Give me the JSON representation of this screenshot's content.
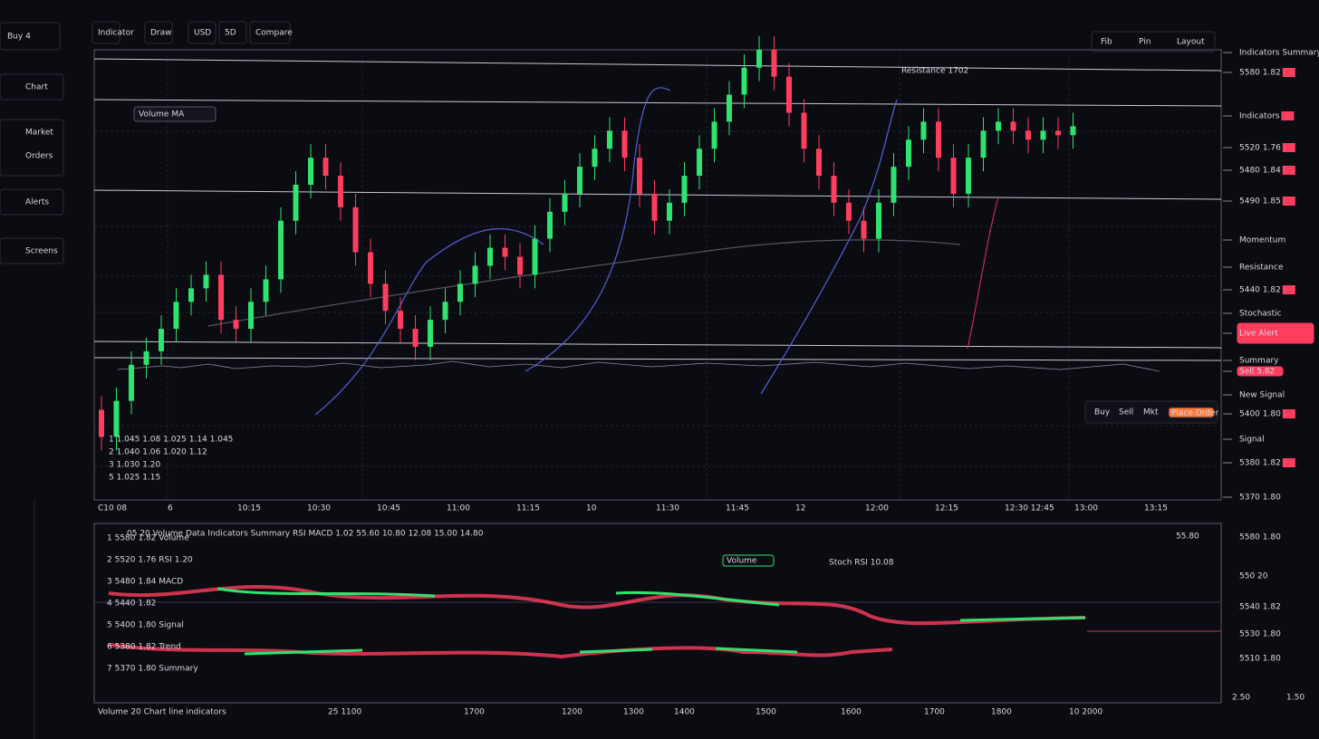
{
  "sidebar": {
    "top": "Buy 4",
    "items": [
      "Chart",
      "Market",
      "Orders",
      "Alerts",
      "Screens"
    ]
  },
  "toolbar": [
    "Indicator",
    "Draw",
    "USD",
    "5D",
    "Compare"
  ],
  "top_right": [
    "Fib",
    "Pin",
    "Layout"
  ],
  "chart_data": {
    "type": "candlestick",
    "annotation": "Resistance 1702",
    "legend_box": "Volume MA",
    "up_color": "#2fe36f",
    "down_color": "#ff3d5e",
    "ylim": [
      0,
      105
    ],
    "open": [
      20,
      14,
      22,
      30,
      33,
      38,
      44,
      47,
      50,
      40,
      38,
      44,
      49,
      62,
      70,
      76,
      72,
      65,
      55,
      48,
      42,
      38,
      34,
      40,
      44,
      48,
      52,
      56,
      54,
      50,
      58,
      64,
      68,
      74,
      78,
      82,
      76,
      68,
      62,
      66,
      72,
      78,
      84,
      90,
      96,
      100,
      94,
      86,
      78,
      72,
      66,
      62,
      58,
      66,
      74,
      80,
      84,
      76,
      68,
      76,
      82,
      84,
      82,
      80,
      82,
      81
    ],
    "high": [
      23,
      25,
      33,
      36,
      41,
      47,
      50,
      53,
      53,
      43,
      47,
      52,
      65,
      73,
      79,
      79,
      75,
      68,
      58,
      51,
      45,
      41,
      43,
      47,
      51,
      55,
      59,
      59,
      57,
      61,
      67,
      71,
      77,
      81,
      85,
      85,
      79,
      71,
      69,
      75,
      81,
      87,
      93,
      99,
      103,
      103,
      97,
      89,
      81,
      75,
      69,
      65,
      69,
      77,
      83,
      87,
      87,
      79,
      79,
      85,
      87,
      87,
      85,
      85,
      85,
      86
    ],
    "low": [
      11,
      11,
      19,
      27,
      30,
      35,
      41,
      44,
      37,
      35,
      35,
      41,
      46,
      59,
      67,
      69,
      62,
      52,
      45,
      39,
      35,
      31,
      31,
      37,
      41,
      45,
      49,
      51,
      47,
      47,
      55,
      61,
      65,
      71,
      75,
      73,
      65,
      59,
      59,
      63,
      69,
      75,
      81,
      87,
      93,
      91,
      83,
      75,
      69,
      63,
      59,
      55,
      55,
      63,
      71,
      77,
      73,
      65,
      65,
      73,
      79,
      79,
      77,
      77,
      78,
      78
    ],
    "close": [
      14,
      22,
      30,
      33,
      38,
      44,
      47,
      50,
      40,
      38,
      44,
      49,
      62,
      70,
      76,
      72,
      65,
      55,
      48,
      42,
      38,
      34,
      40,
      44,
      48,
      52,
      56,
      54,
      50,
      58,
      64,
      68,
      74,
      78,
      82,
      76,
      68,
      62,
      66,
      72,
      78,
      84,
      90,
      96,
      100,
      94,
      86,
      78,
      72,
      66,
      62,
      58,
      66,
      74,
      80,
      84,
      76,
      68,
      76,
      82,
      84,
      82,
      80,
      82,
      81,
      83
    ]
  },
  "legend_rows": [
    "1 1.045 1.08 1.025 1.14 1.045",
    "2 1.040 1.06 1.020 1.12",
    "3 1.030 1.20",
    "5 1.025 1.15"
  ],
  "price_labels": [
    {
      "text": "Indicators Summary"
    },
    {
      "text": "5580 1.82",
      "style": "badge"
    },
    {
      "text": "Indicators",
      "style": "badge"
    },
    {
      "text": "5520 1.76",
      "style": "badge"
    },
    {
      "text": "5480 1.84",
      "style": "badge"
    },
    {
      "text": "5490 1.85",
      "style": "badge"
    },
    {
      "text": "Momentum"
    },
    {
      "text": "Resistance"
    },
    {
      "text": "5440 1.82",
      "style": "badge"
    },
    {
      "text": "Stochastic"
    },
    {
      "text": "Live Alert",
      "style": "box"
    },
    {
      "text": "Summary"
    },
    {
      "text": "Sell 5.82",
      "style": "box"
    },
    {
      "text": "New Signal"
    },
    {
      "text": "5400 1.80",
      "style": "badge"
    },
    {
      "text": "Signal"
    },
    {
      "text": "5380 1.82",
      "style": "badge"
    },
    {
      "text": "5370 1.80"
    }
  ],
  "order_box": {
    "buy": "Buy",
    "sell": "Sell",
    "type": "Mkt",
    "button": "Place Order"
  },
  "time_labels": [
    "C10 08",
    "6",
    "10:15",
    "10:30",
    "10:45",
    "11:00",
    "11:15",
    "10",
    "11:30",
    "11:45",
    "12",
    "12:00",
    "12:15",
    "12:30 12:45",
    "13:00",
    "13:15"
  ],
  "lower_panel": {
    "header": "05 20 Volume Data Indicators Summary RSI MACD 1.02 55.60 10.80 12.08 15.00 14.80",
    "value": "55.80",
    "legend_box": "Volume",
    "info": "Stoch RSI 10.08",
    "rows": [
      "1 5580 1.82 Volume",
      "2 5520 1.76 RSI 1.20",
      "3 5480 1.84 MACD",
      "4 5440 1.82",
      "5 5400 1.80 Signal",
      "6 5380 1.82 Trend",
      "7 5370 1.80 Summary"
    ],
    "axis_labels": [
      "5580 1.80",
      "550 20",
      "5540 1.82",
      "5530 1.80",
      "5510 1.80"
    ]
  },
  "footer": [
    "Volume 20 Chart line indicators",
    "25 1100",
    "1700",
    "1200",
    "1300",
    "1400",
    "1500",
    "1600",
    "1700",
    "1800",
    "10 2000",
    "2.50",
    "1.50"
  ]
}
